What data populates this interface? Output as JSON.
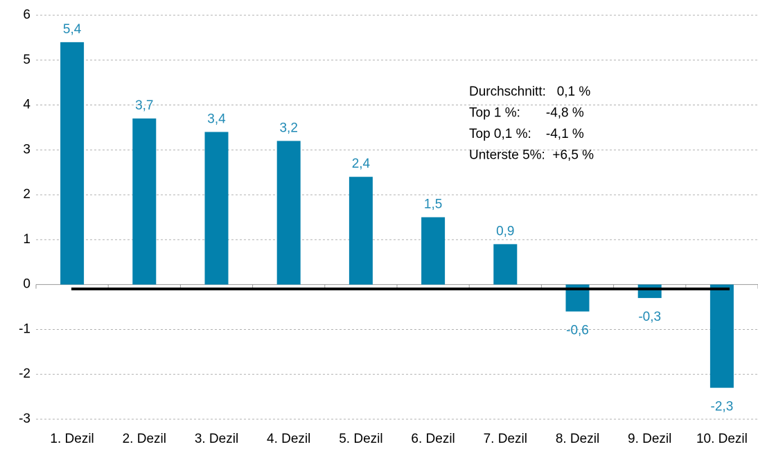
{
  "chart_data": {
    "type": "bar",
    "categories": [
      "1. Dezil",
      "2. Dezil",
      "3. Dezil",
      "4. Dezil",
      "5. Dezil",
      "6. Dezil",
      "7. Dezil",
      "8. Dezil",
      "9. Dezil",
      "10. Dezil"
    ],
    "values": [
      5.4,
      3.7,
      3.4,
      3.2,
      2.4,
      1.5,
      0.9,
      -0.6,
      -0.3,
      -2.3
    ],
    "value_labels": [
      "5,4",
      "3,7",
      "3,4",
      "3,2",
      "2,4",
      "1,5",
      "0,9",
      "-0,6",
      "-0,3",
      "-2,3"
    ],
    "color": "#0381ad",
    "ylim": [
      -3,
      6
    ],
    "yticks": [
      -3,
      -2,
      -1,
      0,
      1,
      2,
      3,
      4,
      5,
      6
    ],
    "grid": true,
    "annotations": [
      "Durchschnitt:   0,1 %",
      "Top 1 %:       -4,8 %",
      "Top 0,1 %:    -4,1 %",
      "Unterste 5%:  +6,5 %"
    ]
  }
}
